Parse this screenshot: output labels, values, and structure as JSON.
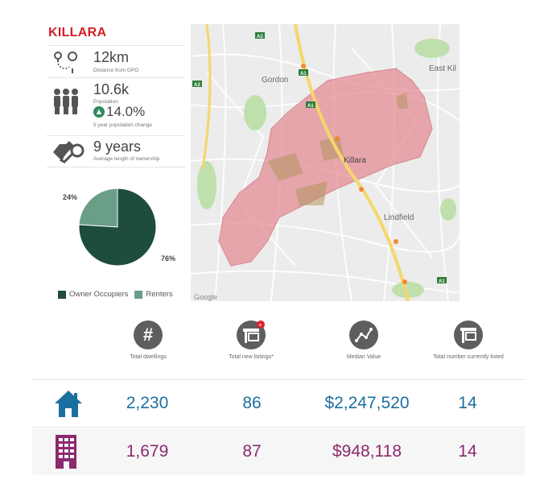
{
  "suburb": {
    "name": "KILLARA",
    "distance": {
      "value": "12km",
      "label": "Distance from GPO",
      "icon": "map-pin-route-icon"
    },
    "population": {
      "value": "10.6k",
      "label": "Population",
      "change": "14.0%",
      "change_label": "5 year population change",
      "icon": "people-icon"
    },
    "ownership": {
      "value": "9 years",
      "label": "Average length of ownership",
      "icon": "keys-icon"
    }
  },
  "chart_data": {
    "type": "pie",
    "labels": [
      "Owner Occupiers",
      "Renters"
    ],
    "values": [
      76,
      24
    ],
    "value_labels": [
      "76%",
      "24%"
    ],
    "colors": [
      "#1e4d3d",
      "#6a9e86"
    ],
    "legend_position": "bottom"
  },
  "map": {
    "labels": [
      "Gordon",
      "Killara",
      "Lindfield",
      "East Kil",
      "A1",
      "A3",
      "Google"
    ],
    "region_color": "#e58a93"
  },
  "table": {
    "headers": [
      {
        "label": "Total dwellings",
        "icon": "hash-icon"
      },
      {
        "label": "Total new listings*",
        "icon": "new-listing-icon"
      },
      {
        "label": "Median Value",
        "icon": "trend-line-icon"
      },
      {
        "label": "Total number currently listed",
        "icon": "listing-sign-icon"
      }
    ],
    "rows": [
      {
        "type": "House",
        "icon": "house-icon",
        "color": "#1b6fa0",
        "dwellings": "2,230",
        "new_listings": "86",
        "median": "$2,247,520",
        "listed": "14"
      },
      {
        "type": "Unit",
        "icon": "apartment-building-icon",
        "color": "#8c2a6e",
        "dwellings": "1,679",
        "new_listings": "87",
        "median": "$948,118",
        "listed": "14"
      }
    ]
  }
}
